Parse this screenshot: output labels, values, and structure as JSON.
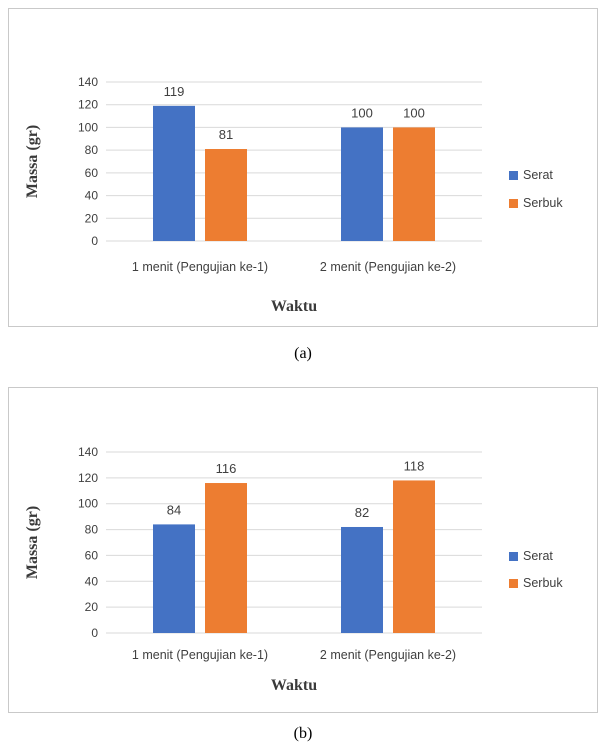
{
  "colors": {
    "serat": "#4472C4",
    "serbuk": "#ED7D31",
    "grid": "#d9d9d9",
    "text": "#404040"
  },
  "chart_data": [
    {
      "type": "bar",
      "caption": "(a)",
      "categories": [
        "1 menit (Pengujian ke-1)",
        "2 menit (Pengujian ke-2)"
      ],
      "series": [
        {
          "name": "Serat",
          "values": [
            119,
            100
          ]
        },
        {
          "name": "Serbuk",
          "values": [
            81,
            100
          ]
        }
      ],
      "xlabel": "Waktu",
      "ylabel": "Massa  (gr)",
      "ylim": [
        0,
        140
      ],
      "yticks": [
        0,
        20,
        40,
        60,
        80,
        100,
        120,
        140
      ],
      "grid": true,
      "legend": "right"
    },
    {
      "type": "bar",
      "caption": "(b)",
      "categories": [
        "1 menit (Pengujian ke-1)",
        "2 menit (Pengujian ke-2)"
      ],
      "series": [
        {
          "name": "Serat",
          "values": [
            84,
            82
          ]
        },
        {
          "name": "Serbuk",
          "values": [
            116,
            118
          ]
        }
      ],
      "xlabel": "Waktu",
      "ylabel": "Massa  (gr)",
      "ylim": [
        0,
        140
      ],
      "yticks": [
        0,
        20,
        40,
        60,
        80,
        100,
        120,
        140
      ],
      "grid": true,
      "legend": "right"
    }
  ]
}
